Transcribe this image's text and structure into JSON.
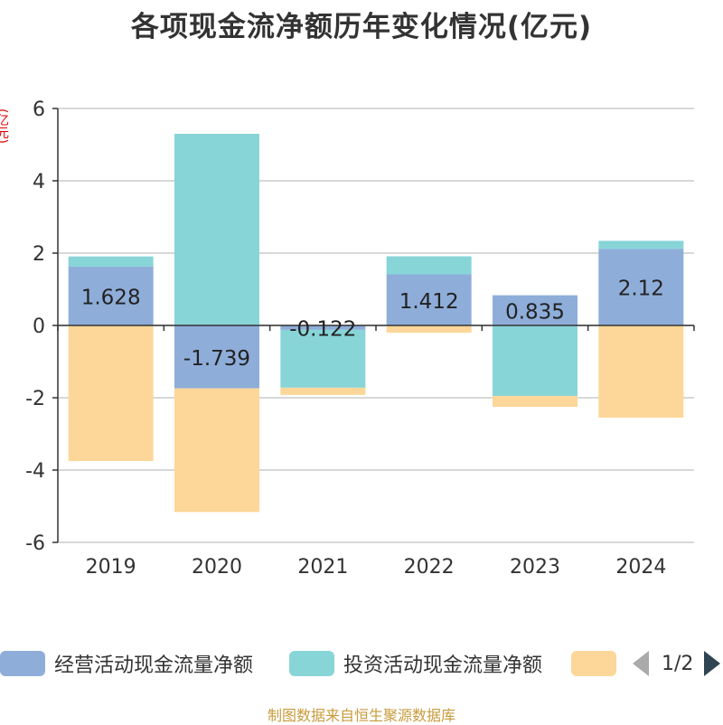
{
  "chart_data": {
    "type": "bar",
    "stacked": true,
    "title": "各项现金流净额历年变化情况(亿元)",
    "ylabel": "(亿元)",
    "xlabel": "",
    "ylim": [
      -6,
      6
    ],
    "yticks": [
      6,
      4,
      2,
      0,
      -2,
      -4,
      -6
    ],
    "grid": true,
    "categories": [
      "2019",
      "2020",
      "2021",
      "2022",
      "2023",
      "2024"
    ],
    "series": [
      {
        "name": "经营活动现金流量净额",
        "color": "#8eadd9",
        "values": [
          1.628,
          -1.739,
          -0.122,
          1.412,
          0.835,
          2.12
        ],
        "labels": [
          "1.628",
          "-1.739",
          "-0.122",
          "1.412",
          "0.835",
          "2.12"
        ]
      },
      {
        "name": "投资活动现金流量净额",
        "color": "#88d5d8",
        "values": [
          0.28,
          5.3,
          -1.6,
          0.5,
          -1.95,
          0.22
        ]
      },
      {
        "name": "",
        "color": "#fdd799",
        "values": [
          -3.75,
          -3.42,
          -0.2,
          -0.2,
          -0.3,
          -2.55
        ]
      }
    ],
    "legend_position": "bottom"
  },
  "legend": {
    "pager": "1/2"
  },
  "source": "制图数据来自恒生聚源数据库"
}
